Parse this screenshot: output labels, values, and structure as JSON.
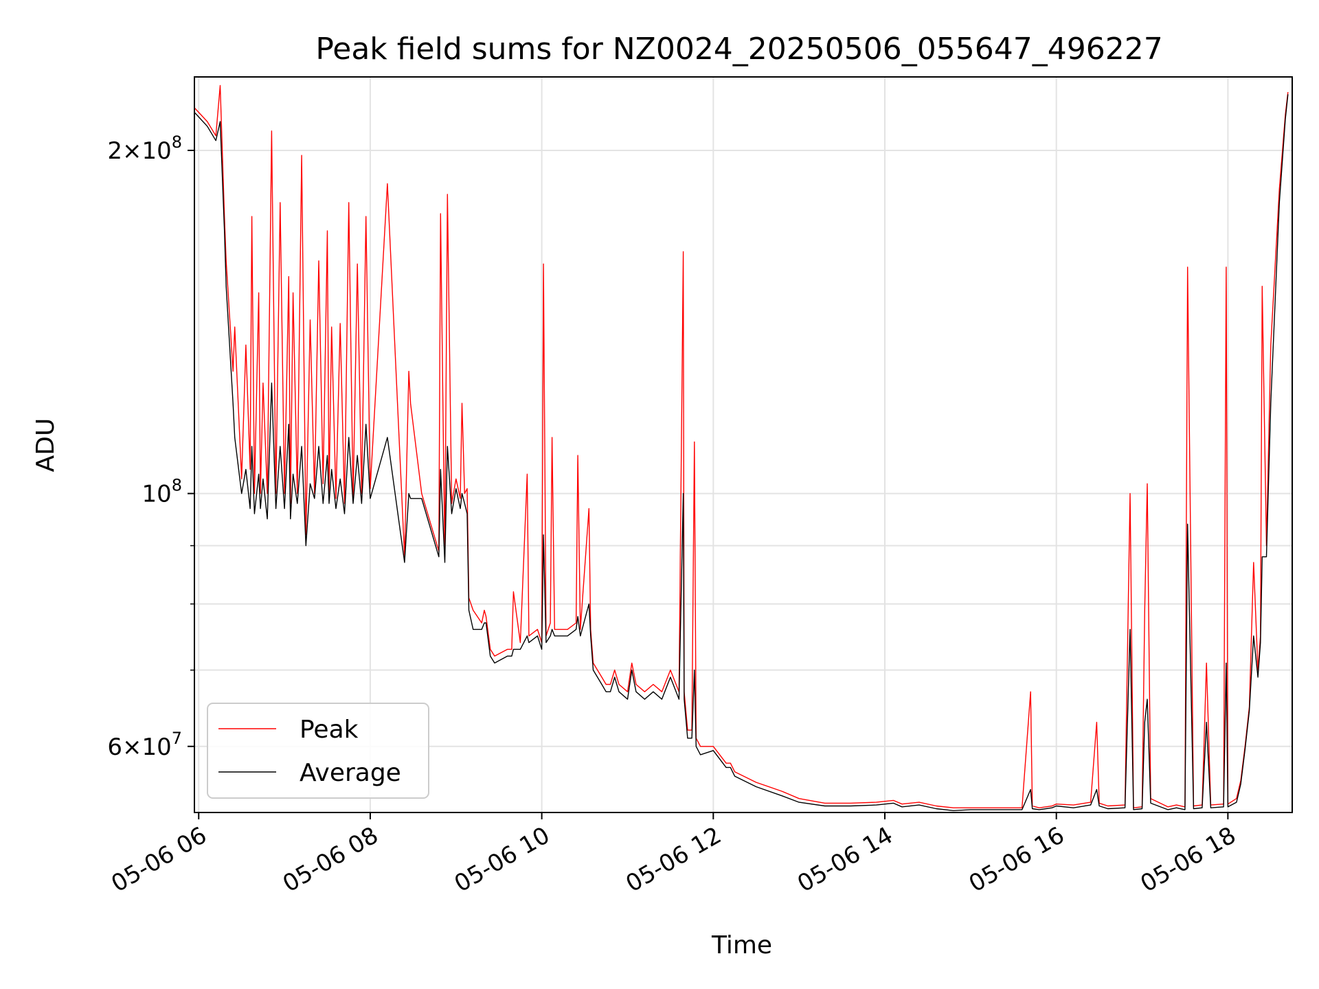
{
  "chart_data": {
    "type": "line",
    "title": "Peak field sums for NZ0024_20250506_055647_496227",
    "xlabel": "Time",
    "ylabel": "ADU",
    "yscale": "log",
    "grid": true,
    "legend_position": "lower-left",
    "xlim": [
      "2025-05-06 05:57",
      "2025-05-06 18:45"
    ],
    "ylim": [
      52500000,
      232000000
    ],
    "x_ticks": [
      "05-06 06",
      "05-06 08",
      "05-06 10",
      "05-06 12",
      "05-06 14",
      "05-06 16",
      "05-06 18"
    ],
    "x_tick_hours": [
      6,
      8,
      10,
      12,
      14,
      16,
      18
    ],
    "y_major_ticks": [
      {
        "value": 60000000,
        "base": "6",
        "times": "×",
        "ten": "10",
        "exp": "7"
      },
      {
        "value": 100000000,
        "base": "",
        "times": "",
        "ten": "10",
        "exp": "8"
      },
      {
        "value": 200000000,
        "base": "2",
        "times": "×",
        "ten": "10",
        "exp": "8"
      }
    ],
    "y_minor_ticks": [
      70000000,
      80000000,
      90000000
    ],
    "series": [
      {
        "name": "Peak",
        "color": "#ff0000",
        "hours": [
          5.95,
          6.1,
          6.2,
          6.25,
          6.3,
          6.32,
          6.4,
          6.42,
          6.5,
          6.55,
          6.6,
          6.62,
          6.65,
          6.7,
          6.72,
          6.75,
          6.8,
          6.85,
          6.9,
          6.95,
          7.0,
          7.05,
          7.07,
          7.1,
          7.15,
          7.2,
          7.25,
          7.3,
          7.35,
          7.4,
          7.45,
          7.5,
          7.52,
          7.55,
          7.6,
          7.65,
          7.7,
          7.75,
          7.8,
          7.85,
          7.9,
          7.95,
          8.0,
          8.2,
          8.4,
          8.45,
          8.47,
          8.6,
          8.8,
          8.82,
          8.87,
          8.9,
          8.95,
          9.0,
          9.05,
          9.07,
          9.1,
          9.13,
          9.15,
          9.2,
          9.3,
          9.33,
          9.35,
          9.4,
          9.45,
          9.6,
          9.65,
          9.67,
          9.75,
          9.83,
          9.85,
          9.95,
          10.0,
          10.02,
          10.05,
          10.1,
          10.12,
          10.15,
          10.3,
          10.4,
          10.42,
          10.45,
          10.55,
          10.57,
          10.6,
          10.7,
          10.75,
          10.8,
          10.85,
          10.9,
          11.0,
          11.05,
          11.1,
          11.2,
          11.3,
          11.4,
          11.5,
          11.6,
          11.65,
          11.66,
          11.7,
          11.75,
          11.78,
          11.8,
          11.85,
          12.0,
          12.15,
          12.2,
          12.25,
          12.5,
          12.8,
          13.0,
          13.3,
          13.6,
          13.9,
          14.1,
          14.2,
          14.4,
          14.6,
          14.8,
          15.0,
          15.3,
          15.6,
          15.7,
          15.72,
          15.8,
          15.95,
          16.0,
          16.2,
          16.4,
          16.47,
          16.5,
          16.6,
          16.8,
          16.86,
          16.9,
          17.0,
          17.03,
          17.06,
          17.1,
          17.3,
          17.4,
          17.5,
          17.53,
          17.6,
          17.7,
          17.75,
          17.8,
          17.95,
          17.98,
          18.0,
          18.1,
          18.15,
          18.2,
          18.25,
          18.3,
          18.35,
          18.38,
          18.4,
          18.45,
          18.5,
          18.6,
          18.67,
          18.7
        ],
        "values": [
          218000000,
          212000000,
          206000000,
          228000000,
          175000000,
          160000000,
          128000000,
          140000000,
          103000000,
          135000000,
          105000000,
          175000000,
          100000000,
          150000000,
          100000000,
          125000000,
          100000000,
          208000000,
          100000000,
          180000000,
          100000000,
          155000000,
          98000000,
          150000000,
          100000000,
          198000000,
          92000000,
          142000000,
          100000000,
          160000000,
          102000000,
          170000000,
          100000000,
          140000000,
          99000000,
          141000000,
          98000000,
          180000000,
          99000000,
          159000000,
          100000000,
          175000000,
          101000000,
          187000000,
          88000000,
          128000000,
          120000000,
          100000000,
          89000000,
          176000000,
          88000000,
          183000000,
          98000000,
          103000000,
          99000000,
          120000000,
          100000000,
          101000000,
          81000000,
          79000000,
          77000000,
          79000000,
          78000000,
          73000000,
          72000000,
          73000000,
          73000000,
          82000000,
          74000000,
          104000000,
          75000000,
          76000000,
          74000000,
          159000000,
          75000000,
          77000000,
          112000000,
          76000000,
          76000000,
          77000000,
          108000000,
          76000000,
          97000000,
          76000000,
          71000000,
          69000000,
          68000000,
          68000000,
          70000000,
          68000000,
          67000000,
          71000000,
          68000000,
          67000000,
          68000000,
          67000000,
          70000000,
          67000000,
          163000000,
          67000000,
          62000000,
          62000000,
          111000000,
          61000000,
          60000000,
          60000000,
          58000000,
          58000000,
          57000000,
          55800000,
          54800000,
          54000000,
          53500000,
          53500000,
          53600000,
          53800000,
          53400000,
          53600000,
          53200000,
          53000000,
          53000000,
          53000000,
          53000000,
          67000000,
          53200000,
          53000000,
          53200000,
          53400000,
          53300000,
          53600000,
          63000000,
          53500000,
          53200000,
          53300000,
          100000000,
          53000000,
          53100000,
          79000000,
          102000000,
          54000000,
          53100000,
          53300000,
          53100000,
          158000000,
          53200000,
          53300000,
          71000000,
          53300000,
          53400000,
          158000000,
          53400000,
          54000000,
          56000000,
          60000000,
          65000000,
          87000000,
          70000000,
          75000000,
          152000000,
          90000000,
          135000000,
          185000000,
          215000000,
          225000000
        ]
      },
      {
        "name": "Average",
        "color": "#000000",
        "hours": [
          5.95,
          6.1,
          6.2,
          6.25,
          6.3,
          6.32,
          6.4,
          6.42,
          6.5,
          6.55,
          6.6,
          6.62,
          6.65,
          6.7,
          6.72,
          6.75,
          6.8,
          6.85,
          6.9,
          6.95,
          7.0,
          7.05,
          7.07,
          7.1,
          7.15,
          7.2,
          7.25,
          7.3,
          7.35,
          7.4,
          7.45,
          7.5,
          7.52,
          7.55,
          7.6,
          7.65,
          7.7,
          7.75,
          7.8,
          7.85,
          7.9,
          7.95,
          8.0,
          8.2,
          8.4,
          8.45,
          8.47,
          8.6,
          8.8,
          8.82,
          8.87,
          8.9,
          8.95,
          9.0,
          9.05,
          9.07,
          9.1,
          9.13,
          9.15,
          9.2,
          9.3,
          9.33,
          9.35,
          9.4,
          9.45,
          9.6,
          9.65,
          9.67,
          9.75,
          9.83,
          9.85,
          9.95,
          10.0,
          10.02,
          10.05,
          10.1,
          10.12,
          10.15,
          10.3,
          10.4,
          10.42,
          10.45,
          10.55,
          10.57,
          10.6,
          10.7,
          10.75,
          10.8,
          10.85,
          10.9,
          11.0,
          11.05,
          11.1,
          11.2,
          11.3,
          11.4,
          11.5,
          11.6,
          11.65,
          11.66,
          11.7,
          11.75,
          11.78,
          11.8,
          11.85,
          12.0,
          12.15,
          12.2,
          12.25,
          12.5,
          12.8,
          13.0,
          13.3,
          13.6,
          13.9,
          14.1,
          14.2,
          14.4,
          14.6,
          14.8,
          15.0,
          15.3,
          15.6,
          15.7,
          15.72,
          15.8,
          15.95,
          16.0,
          16.2,
          16.4,
          16.47,
          16.5,
          16.6,
          16.8,
          16.86,
          16.9,
          17.0,
          17.03,
          17.06,
          17.1,
          17.3,
          17.4,
          17.5,
          17.53,
          17.6,
          17.7,
          17.75,
          17.8,
          17.95,
          17.98,
          18.0,
          18.1,
          18.15,
          18.2,
          18.25,
          18.3,
          18.35,
          18.38,
          18.4,
          18.45,
          18.5,
          18.6,
          18.67,
          18.7
        ],
        "values": [
          216000000,
          210000000,
          204000000,
          212000000,
          170000000,
          152000000,
          120000000,
          112000000,
          100000000,
          105000000,
          97000000,
          110000000,
          96000000,
          104000000,
          97000000,
          103000000,
          95000000,
          125000000,
          97000000,
          110000000,
          97000000,
          115000000,
          95000000,
          104000000,
          98000000,
          110000000,
          90000000,
          102000000,
          99000000,
          110000000,
          98000000,
          108000000,
          98000000,
          105000000,
          97000000,
          103000000,
          96000000,
          112000000,
          98000000,
          108000000,
          98000000,
          115000000,
          99000000,
          112000000,
          87000000,
          100000000,
          99000000,
          99000000,
          88000000,
          105000000,
          87000000,
          110000000,
          96000000,
          101000000,
          97000000,
          100000000,
          98000000,
          96000000,
          79000000,
          76000000,
          76000000,
          77000000,
          77000000,
          72000000,
          71000000,
          72000000,
          72000000,
          73000000,
          73000000,
          75000000,
          74000000,
          75000000,
          73000000,
          92000000,
          74000000,
          75000000,
          76000000,
          75000000,
          75000000,
          76000000,
          78000000,
          75000000,
          80000000,
          75000000,
          70000000,
          68000000,
          67000000,
          67000000,
          69000000,
          67000000,
          66000000,
          70000000,
          67000000,
          66000000,
          67000000,
          66000000,
          69000000,
          66000000,
          100000000,
          66000000,
          61000000,
          61000000,
          70000000,
          60000000,
          59000000,
          59500000,
          57500000,
          57500000,
          56500000,
          55300000,
          54300000,
          53600000,
          53200000,
          53200000,
          53300000,
          53500000,
          53100000,
          53300000,
          52900000,
          52700000,
          52800000,
          52800000,
          52800000,
          55000000,
          52900000,
          52800000,
          53000000,
          53200000,
          53000000,
          53300000,
          55000000,
          53200000,
          52900000,
          53000000,
          76000000,
          52800000,
          52900000,
          63000000,
          66000000,
          53500000,
          52800000,
          53000000,
          52800000,
          94000000,
          52900000,
          53000000,
          63000000,
          53000000,
          53100000,
          71000000,
          53100000,
          53600000,
          55600000,
          59600000,
          64500000,
          75000000,
          69000000,
          74000000,
          88000000,
          88000000,
          120000000,
          180000000,
          213000000,
          224000000
        ]
      }
    ]
  }
}
